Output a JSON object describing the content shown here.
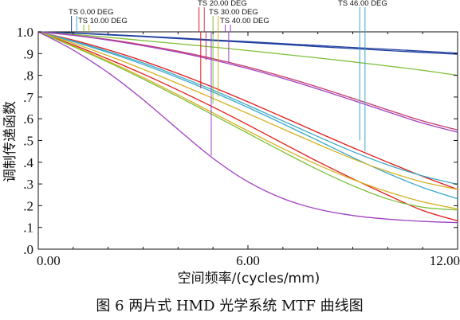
{
  "chart_data": {
    "type": "line",
    "title": "",
    "caption": "图 6   两片式 HMD 光学系统 MTF 曲线图",
    "xlabel": "空间频率/(cycles/mm)",
    "ylabel": "调制传递函数",
    "xlim": [
      0,
      12
    ],
    "ylim": [
      0,
      1
    ],
    "x_ticks": [
      0,
      6,
      12
    ],
    "x_tick_labels": [
      "0.00",
      "6.00",
      "12.00"
    ],
    "y_ticks": [
      0,
      0.1,
      0.2,
      0.3,
      0.4,
      0.5,
      0.6,
      0.7,
      0.8,
      0.9,
      1.0
    ],
    "y_tick_labels": [
      ".0",
      ".1",
      ".2",
      ".3",
      ".4",
      ".5",
      ".6",
      ".7",
      ".8",
      ".9",
      "1.0"
    ],
    "grid": false,
    "legend": "top (field labels with leader lines)",
    "field_labels": [
      {
        "text": "TS 0.00 DEG",
        "colors": [
          "#1f3f9f",
          "#3aa9c9"
        ],
        "line_x": [
          0.95,
          1.1
        ]
      },
      {
        "text": "TS 10.00 DEG",
        "colors": [
          "#7fc03a",
          "#d4b020"
        ],
        "line_x": [
          1.3,
          1.45
        ]
      },
      {
        "text": "TS 20.00 DEG",
        "colors": [
          "#e01a1a",
          "#c43a6a"
        ],
        "line_x": [
          4.6,
          4.75
        ]
      },
      {
        "text": "TS 30.00 DEG",
        "colors": [
          "#7fc03a",
          "#d4b020"
        ],
        "line_x": [
          5.0,
          5.15
        ]
      },
      {
        "text": "TS 40.00 DEG",
        "colors": [
          "#a040c0",
          "#a040c0"
        ],
        "line_x": [
          5.35,
          5.5
        ]
      },
      {
        "text": "TS 46.00 DEG",
        "colors": [
          "#3aa9c9",
          "#3aa9c9"
        ],
        "line_x": [
          9.2,
          9.35
        ]
      }
    ],
    "label_cutoffs": [
      {
        "x": 4.65,
        "y": 0.74,
        "color": "#e01a1a"
      },
      {
        "x": 4.8,
        "y": 0.87,
        "color": "#c43a6a"
      },
      {
        "x": 5.0,
        "y": 0.67,
        "color": "#7fc03a"
      },
      {
        "x": 5.15,
        "y": 0.7,
        "color": "#d4b020"
      },
      {
        "x": 5.45,
        "y": 0.86,
        "color": "#a040c0"
      },
      {
        "x": 4.95,
        "y": 0.43,
        "color": "#a040c0"
      },
      {
        "x": 9.2,
        "y": 0.5,
        "color": "#3aa9c9"
      },
      {
        "x": 9.35,
        "y": 0.45,
        "color": "#3aa9c9"
      }
    ],
    "x": [
      0,
      1,
      2,
      3,
      4,
      5,
      6,
      7,
      8,
      9,
      10,
      11,
      12
    ],
    "series": [
      {
        "color": "#1f3f9f",
        "values": [
          1.0,
          0.995,
          0.988,
          0.98,
          0.972,
          0.963,
          0.955,
          0.946,
          0.937,
          0.928,
          0.92,
          0.911,
          0.902
        ]
      },
      {
        "color": "#1f3f9f",
        "values": [
          1.0,
          0.994,
          0.986,
          0.978,
          0.969,
          0.96,
          0.951,
          0.942,
          0.932,
          0.923,
          0.914,
          0.905,
          0.897
        ]
      },
      {
        "color": "#7fc03a",
        "values": [
          1.0,
          0.988,
          0.975,
          0.96,
          0.945,
          0.93,
          0.914,
          0.897,
          0.88,
          0.862,
          0.843,
          0.823,
          0.8
        ]
      },
      {
        "color": "#c43a6a",
        "values": [
          1.0,
          0.985,
          0.965,
          0.94,
          0.911,
          0.877,
          0.838,
          0.794,
          0.746,
          0.694,
          0.641,
          0.59,
          0.548
        ]
      },
      {
        "color": "#a040c0",
        "values": [
          1.0,
          0.984,
          0.962,
          0.936,
          0.906,
          0.871,
          0.831,
          0.786,
          0.737,
          0.685,
          0.632,
          0.58,
          0.538
        ]
      },
      {
        "color": "#e01a1a",
        "values": [
          1.0,
          0.962,
          0.917,
          0.866,
          0.808,
          0.745,
          0.678,
          0.608,
          0.537,
          0.467,
          0.4,
          0.335,
          0.275
        ]
      },
      {
        "color": "#e01a1a",
        "values": [
          1.0,
          0.94,
          0.875,
          0.806,
          0.732,
          0.654,
          0.572,
          0.487,
          0.403,
          0.324,
          0.249,
          0.178,
          0.13
        ]
      },
      {
        "color": "#3aa9c9",
        "values": [
          1.0,
          0.958,
          0.91,
          0.857,
          0.797,
          0.732,
          0.662,
          0.59,
          0.518,
          0.449,
          0.388,
          0.337,
          0.298
        ]
      },
      {
        "color": "#3aa9c9",
        "values": [
          1.0,
          0.955,
          0.905,
          0.85,
          0.789,
          0.723,
          0.652,
          0.577,
          0.5,
          0.422,
          0.349,
          0.284,
          0.232
        ]
      },
      {
        "color": "#d4b020",
        "values": [
          1.0,
          0.948,
          0.89,
          0.828,
          0.762,
          0.694,
          0.624,
          0.553,
          0.483,
          0.416,
          0.357,
          0.309,
          0.275
        ]
      },
      {
        "color": "#d4b020",
        "values": [
          1.0,
          0.935,
          0.865,
          0.79,
          0.71,
          0.627,
          0.544,
          0.463,
          0.388,
          0.321,
          0.264,
          0.218,
          0.185
        ]
      },
      {
        "color": "#7fc03a",
        "values": [
          1.0,
          0.932,
          0.86,
          0.783,
          0.702,
          0.618,
          0.533,
          0.448,
          0.366,
          0.292,
          0.231,
          0.193,
          0.18
        ]
      },
      {
        "color": "#a040c0",
        "values": [
          1.0,
          0.916,
          0.812,
          0.688,
          0.551,
          0.418,
          0.31,
          0.233,
          0.184,
          0.155,
          0.138,
          0.128,
          0.122
        ]
      }
    ]
  }
}
